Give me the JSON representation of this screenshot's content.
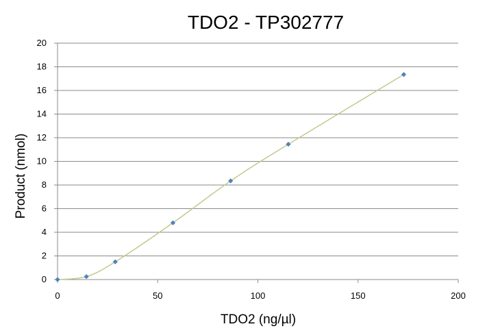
{
  "chart_data": {
    "type": "scatter",
    "title": "TDO2 - TP302777",
    "xlabel": "TDO2 (ng/µl)",
    "ylabel": "Product (nmol)",
    "xlim": [
      0,
      200
    ],
    "ylim": [
      0,
      20
    ],
    "x_ticks": [
      "0",
      "50",
      "100",
      "150",
      "200"
    ],
    "y_ticks": [
      "0",
      "2",
      "4",
      "6",
      "8",
      "10",
      "12",
      "14",
      "16",
      "18",
      "20"
    ],
    "grid": true,
    "series": [
      {
        "x": [
          0,
          14.4,
          28.8,
          57.6,
          86.4,
          115.2,
          172.8
        ],
        "y": [
          0,
          0.25,
          1.5,
          4.8,
          8.35,
          11.45,
          17.35
        ]
      }
    ],
    "colors": {
      "marker": "#4f81bd",
      "line": "#c3c98b"
    }
  }
}
